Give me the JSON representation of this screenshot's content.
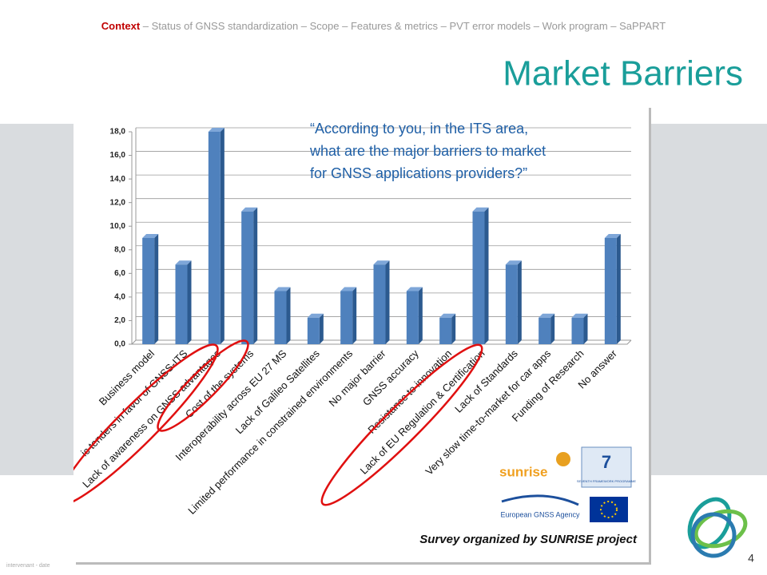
{
  "nav": {
    "current": "Context",
    "rest": " – Status of GNSS standardization – Scope – Features & metrics – PVT error models – Work program – SaPPART"
  },
  "title": "Market Barriers",
  "question": [
    "“According to you, in the ITS area,",
    "what are the major barriers to market",
    "for GNSS applications  providers?”"
  ],
  "survey_note": "Survey organized by SUNRISE project",
  "logos": {
    "sunrise": "sunrise",
    "fp7": "SEVENTH FRAMEWORK PROGRAMME",
    "gsa": "European GNSS Agency"
  },
  "footer": "intervenant - date",
  "page_number": "4",
  "chart_data": {
    "type": "bar",
    "categories": [
      "Business model",
      "ic tenders in favor of GNSS-ITS",
      "Lack of awareness on GNSS advantages",
      "Cost of the systems",
      "Interoperability across EU 27 MS",
      "Lack of Galileo Satellites",
      "Limited performance  in constrained environments",
      "No major barrier",
      "GNSS accuracy",
      "Resistance to innovation",
      "Lack of EU Regulation & Certification",
      "Lack of Standards",
      "Very slow time-to-market for car apps",
      "Funding of Research",
      "No answer"
    ],
    "values": [
      9,
      6.75,
      18,
      11.25,
      4.5,
      2.25,
      4.5,
      6.75,
      4.5,
      2.25,
      11.25,
      6.75,
      2.25,
      2.25,
      9
    ],
    "color": "#4f81bd",
    "ylim": [
      0,
      18
    ],
    "yticks": [
      {
        "value": 0,
        "label": "0,0"
      },
      {
        "value": 2,
        "label": "2,0"
      },
      {
        "value": 4,
        "label": "4,0"
      },
      {
        "value": 6,
        "label": "6,0"
      },
      {
        "value": 8,
        "label": "8,0"
      },
      {
        "value": 10,
        "label": "10,0"
      },
      {
        "value": 12,
        "label": "12,0"
      },
      {
        "value": 14,
        "label": "14,0"
      },
      {
        "value": 16,
        "label": "16,0"
      },
      {
        "value": 18,
        "label": "18,0"
      }
    ],
    "grid": true
  }
}
